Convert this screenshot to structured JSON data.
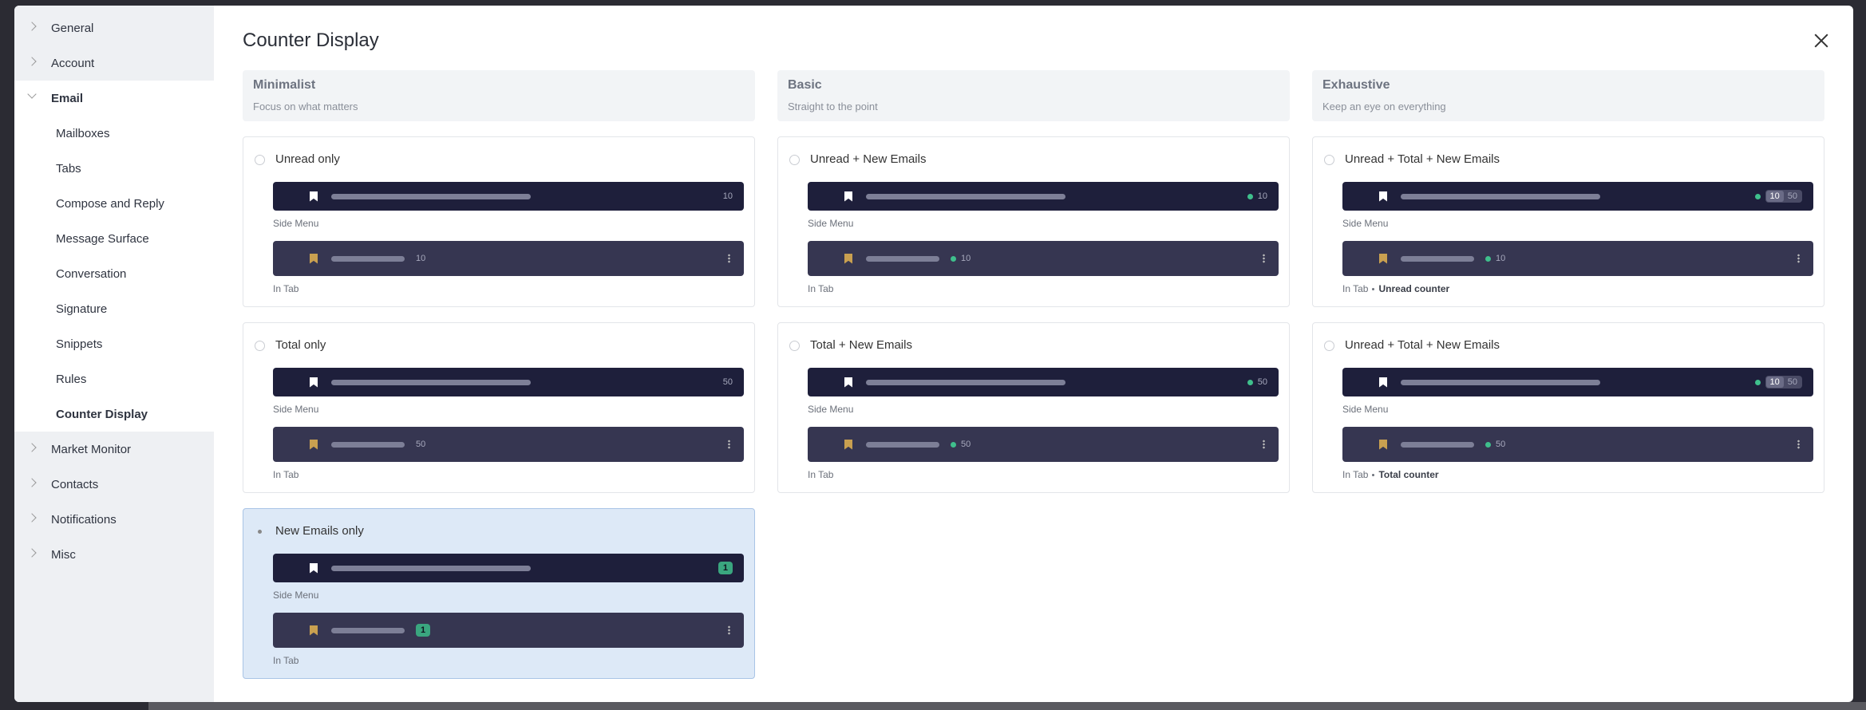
{
  "sidebar": {
    "items": [
      {
        "label": "General",
        "expanded": false
      },
      {
        "label": "Account",
        "expanded": false
      },
      {
        "label": "Email",
        "expanded": true,
        "children": [
          {
            "label": "Mailboxes",
            "active": false
          },
          {
            "label": "Tabs",
            "active": false
          },
          {
            "label": "Compose and Reply",
            "active": false
          },
          {
            "label": "Message Surface",
            "active": false
          },
          {
            "label": "Conversation",
            "active": false
          },
          {
            "label": "Signature",
            "active": false
          },
          {
            "label": "Snippets",
            "active": false
          },
          {
            "label": "Rules",
            "active": false
          },
          {
            "label": "Counter Display",
            "active": true
          }
        ]
      },
      {
        "label": "Market Monitor",
        "expanded": false
      },
      {
        "label": "Contacts",
        "expanded": false
      },
      {
        "label": "Notifications",
        "expanded": false
      },
      {
        "label": "Misc",
        "expanded": false
      }
    ]
  },
  "panel": {
    "title": "Counter Display",
    "columns": [
      {
        "title": "Minimalist",
        "subtitle": "Focus on what matters"
      },
      {
        "title": "Basic",
        "subtitle": "Straight to the point"
      },
      {
        "title": "Exhaustive",
        "subtitle": "Keep an eye on everything"
      }
    ],
    "options": [
      {
        "label": "Unread only",
        "selected": false,
        "side_menu": {
          "caption": "Side Menu",
          "dot": false,
          "style": "plain",
          "counts": [
            10
          ]
        },
        "in_tab": {
          "caption": "In Tab",
          "dot": false,
          "style": "plain",
          "counts": [
            10
          ]
        }
      },
      {
        "label": "Unread + New Emails",
        "selected": false,
        "side_menu": {
          "caption": "Side Menu",
          "dot": true,
          "style": "plain",
          "counts": [
            10
          ]
        },
        "in_tab": {
          "caption": "In Tab",
          "dot": true,
          "style": "plain",
          "counts": [
            10
          ]
        }
      },
      {
        "label": "Unread + Total + New Emails",
        "selected": false,
        "side_menu": {
          "caption": "Side Menu",
          "dot": true,
          "style": "pill",
          "counts": [
            10,
            50
          ]
        },
        "in_tab": {
          "caption": "In Tab",
          "note": "Unread counter",
          "dot": true,
          "style": "plain",
          "counts": [
            10
          ]
        }
      },
      {
        "label": "Total only",
        "selected": false,
        "side_menu": {
          "caption": "Side Menu",
          "dot": false,
          "style": "plain",
          "counts": [
            50
          ]
        },
        "in_tab": {
          "caption": "In Tab",
          "dot": false,
          "style": "plain",
          "counts": [
            50
          ]
        }
      },
      {
        "label": "Total + New Emails",
        "selected": false,
        "side_menu": {
          "caption": "Side Menu",
          "dot": true,
          "style": "plain",
          "counts": [
            50
          ]
        },
        "in_tab": {
          "caption": "In Tab",
          "dot": true,
          "style": "plain",
          "counts": [
            50
          ]
        }
      },
      {
        "label": "Unread + Total + New Emails",
        "selected": false,
        "side_menu": {
          "caption": "Side Menu",
          "dot": true,
          "style": "pill",
          "counts": [
            10,
            50
          ]
        },
        "in_tab": {
          "caption": "In Tab",
          "note": "Total counter",
          "dot": true,
          "style": "plain",
          "counts": [
            50
          ]
        }
      },
      {
        "label": "New Emails only",
        "selected": true,
        "side_menu": {
          "caption": "Side Menu",
          "dot": false,
          "style": "badge",
          "counts": [
            1
          ]
        },
        "in_tab": {
          "caption": "In Tab",
          "dot": false,
          "style": "badge",
          "counts": [
            1
          ]
        }
      }
    ]
  }
}
